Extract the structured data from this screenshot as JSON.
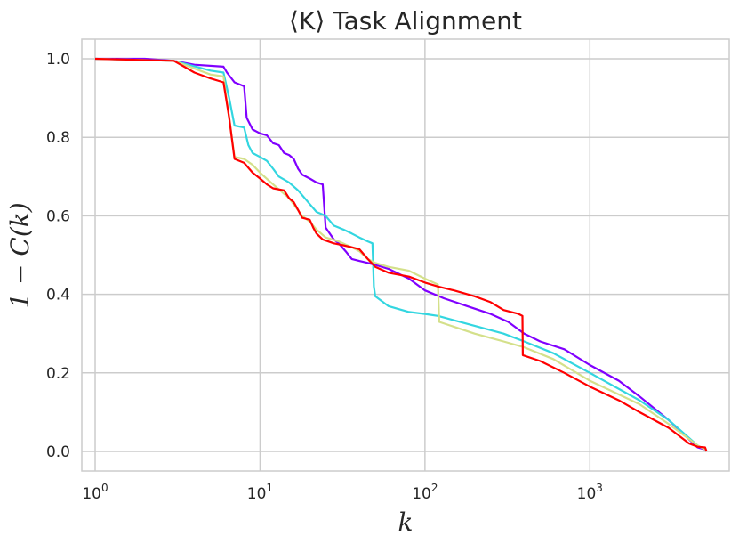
{
  "chart_data": {
    "type": "line",
    "title": "⟨K⟩ Task Alignment",
    "xlabel": "k",
    "ylabel": "1 − C(k)",
    "xscale": "log",
    "xlim": [
      0.83,
      7000
    ],
    "ylim": [
      -0.05,
      1.05
    ],
    "grid": true,
    "legend": "none",
    "x_ticks": [
      {
        "value": 1,
        "base": "10",
        "exp": "0"
      },
      {
        "value": 10,
        "base": "10",
        "exp": "1"
      },
      {
        "value": 100,
        "base": "10",
        "exp": "2"
      },
      {
        "value": 1000,
        "base": "10",
        "exp": "3"
      }
    ],
    "y_ticks": [
      {
        "value": 0.0,
        "label": "0.0"
      },
      {
        "value": 0.2,
        "label": "0.2"
      },
      {
        "value": 0.4,
        "label": "0.4"
      },
      {
        "value": 0.6,
        "label": "0.6"
      },
      {
        "value": 0.8,
        "label": "0.8"
      },
      {
        "value": 1.0,
        "label": "1.0"
      }
    ],
    "series": [
      {
        "color": "#8000ff",
        "points": [
          [
            1,
            1.0
          ],
          [
            2,
            1.0
          ],
          [
            3,
            0.995
          ],
          [
            4,
            0.985
          ],
          [
            6,
            0.98
          ],
          [
            6.3,
            0.965
          ],
          [
            7,
            0.94
          ],
          [
            8,
            0.93
          ],
          [
            8.3,
            0.85
          ],
          [
            9,
            0.82
          ],
          [
            10,
            0.81
          ],
          [
            11,
            0.805
          ],
          [
            12,
            0.785
          ],
          [
            13,
            0.78
          ],
          [
            14,
            0.76
          ],
          [
            15,
            0.755
          ],
          [
            16,
            0.745
          ],
          [
            17,
            0.72
          ],
          [
            18,
            0.705
          ],
          [
            20,
            0.695
          ],
          [
            22,
            0.685
          ],
          [
            24,
            0.68
          ],
          [
            25,
            0.57
          ],
          [
            28,
            0.54
          ],
          [
            30,
            0.53
          ],
          [
            33,
            0.51
          ],
          [
            36,
            0.49
          ],
          [
            40,
            0.485
          ],
          [
            45,
            0.48
          ],
          [
            50,
            0.475
          ],
          [
            60,
            0.465
          ],
          [
            80,
            0.44
          ],
          [
            100,
            0.41
          ],
          [
            130,
            0.39
          ],
          [
            180,
            0.37
          ],
          [
            250,
            0.35
          ],
          [
            320,
            0.33
          ],
          [
            400,
            0.3
          ],
          [
            500,
            0.28
          ],
          [
            700,
            0.26
          ],
          [
            1000,
            0.22
          ],
          [
            1500,
            0.18
          ],
          [
            2000,
            0.14
          ],
          [
            3000,
            0.08
          ],
          [
            4500,
            0.01
          ],
          [
            5000,
            0.005
          ]
        ]
      },
      {
        "color": "#33d6e0",
        "points": [
          [
            1,
            1.0
          ],
          [
            3,
            0.995
          ],
          [
            5,
            0.97
          ],
          [
            6,
            0.965
          ],
          [
            6.5,
            0.9
          ],
          [
            7,
            0.83
          ],
          [
            8,
            0.825
          ],
          [
            8.5,
            0.78
          ],
          [
            9,
            0.76
          ],
          [
            10,
            0.75
          ],
          [
            11,
            0.74
          ],
          [
            12,
            0.72
          ],
          [
            13,
            0.7
          ],
          [
            15,
            0.685
          ],
          [
            17,
            0.665
          ],
          [
            20,
            0.63
          ],
          [
            22,
            0.61
          ],
          [
            25,
            0.6
          ],
          [
            28,
            0.575
          ],
          [
            32,
            0.565
          ],
          [
            36,
            0.555
          ],
          [
            40,
            0.545
          ],
          [
            45,
            0.535
          ],
          [
            48,
            0.53
          ],
          [
            49,
            0.42
          ],
          [
            50,
            0.395
          ],
          [
            60,
            0.37
          ],
          [
            80,
            0.355
          ],
          [
            100,
            0.35
          ],
          [
            120,
            0.345
          ],
          [
            200,
            0.32
          ],
          [
            300,
            0.3
          ],
          [
            400,
            0.28
          ],
          [
            600,
            0.25
          ],
          [
            1000,
            0.2
          ],
          [
            2000,
            0.13
          ],
          [
            3000,
            0.08
          ],
          [
            4500,
            0.015
          ],
          [
            5000,
            0.005
          ]
        ]
      },
      {
        "color": "#d4e08a",
        "points": [
          [
            1,
            1.0
          ],
          [
            3,
            0.995
          ],
          [
            5,
            0.96
          ],
          [
            6,
            0.955
          ],
          [
            6.5,
            0.85
          ],
          [
            7,
            0.75
          ],
          [
            8,
            0.745
          ],
          [
            9,
            0.73
          ],
          [
            10,
            0.71
          ],
          [
            12,
            0.68
          ],
          [
            15,
            0.645
          ],
          [
            18,
            0.6
          ],
          [
            20,
            0.585
          ],
          [
            22,
            0.565
          ],
          [
            25,
            0.545
          ],
          [
            30,
            0.535
          ],
          [
            36,
            0.52
          ],
          [
            40,
            0.51
          ],
          [
            45,
            0.49
          ],
          [
            50,
            0.48
          ],
          [
            60,
            0.47
          ],
          [
            80,
            0.46
          ],
          [
            100,
            0.44
          ],
          [
            120,
            0.425
          ],
          [
            122,
            0.33
          ],
          [
            200,
            0.3
          ],
          [
            300,
            0.28
          ],
          [
            400,
            0.265
          ],
          [
            600,
            0.235
          ],
          [
            1000,
            0.18
          ],
          [
            2000,
            0.12
          ],
          [
            3000,
            0.07
          ],
          [
            4500,
            0.015
          ],
          [
            5000,
            0.005
          ]
        ]
      },
      {
        "color": "#ff0000",
        "points": [
          [
            1,
            1.0
          ],
          [
            3,
            0.995
          ],
          [
            4,
            0.965
          ],
          [
            5,
            0.95
          ],
          [
            6,
            0.94
          ],
          [
            6.5,
            0.85
          ],
          [
            7,
            0.745
          ],
          [
            8,
            0.735
          ],
          [
            9,
            0.71
          ],
          [
            10,
            0.695
          ],
          [
            11,
            0.68
          ],
          [
            12,
            0.67
          ],
          [
            14,
            0.665
          ],
          [
            15,
            0.645
          ],
          [
            16,
            0.635
          ],
          [
            17,
            0.615
          ],
          [
            18,
            0.595
          ],
          [
            20,
            0.59
          ],
          [
            21,
            0.57
          ],
          [
            22,
            0.555
          ],
          [
            24,
            0.54
          ],
          [
            28,
            0.53
          ],
          [
            32,
            0.525
          ],
          [
            36,
            0.52
          ],
          [
            40,
            0.515
          ],
          [
            45,
            0.49
          ],
          [
            50,
            0.47
          ],
          [
            60,
            0.455
          ],
          [
            80,
            0.445
          ],
          [
            100,
            0.43
          ],
          [
            120,
            0.42
          ],
          [
            150,
            0.41
          ],
          [
            200,
            0.395
          ],
          [
            250,
            0.38
          ],
          [
            300,
            0.36
          ],
          [
            370,
            0.35
          ],
          [
            390,
            0.345
          ],
          [
            392,
            0.245
          ],
          [
            500,
            0.23
          ],
          [
            700,
            0.2
          ],
          [
            1000,
            0.165
          ],
          [
            1500,
            0.13
          ],
          [
            2000,
            0.1
          ],
          [
            3000,
            0.06
          ],
          [
            4000,
            0.02
          ],
          [
            4500,
            0.012
          ],
          [
            5000,
            0.01
          ],
          [
            5100,
            0.0
          ]
        ]
      }
    ]
  }
}
